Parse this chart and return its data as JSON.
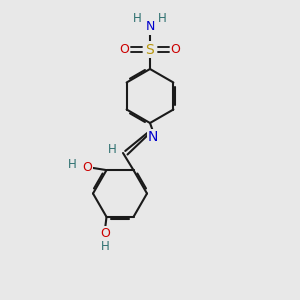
{
  "bg_color": "#e8e8e8",
  "bond_color": "#1a1a1a",
  "bond_width": 1.5,
  "dbo": 0.055,
  "atom_colors": {
    "S": "#b8960a",
    "O": "#cc0000",
    "N": "#0000cc",
    "H": "#2d7070",
    "C": "#1a1a1a"
  },
  "fs": 8.5,
  "figsize": [
    3.0,
    3.0
  ],
  "dpi": 100
}
